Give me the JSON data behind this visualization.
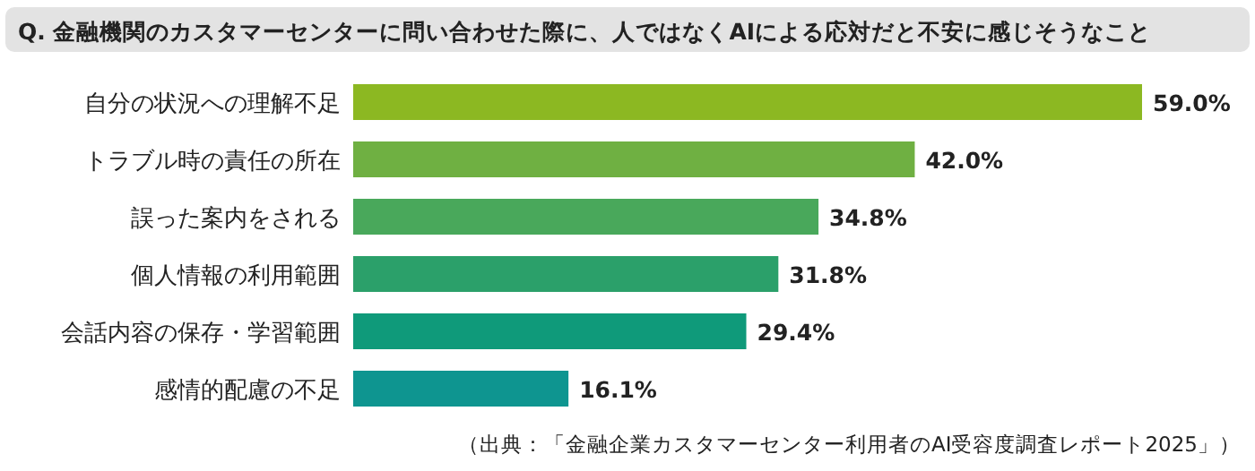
{
  "chart_data": {
    "type": "bar",
    "orientation": "horizontal",
    "title": "Q. 金融機関のカスタマーセンターに問い合わせた際に、人ではなくAIによる応対だと不安に感じそうなこと",
    "categories": [
      "自分の状況への理解不足",
      "トラブル時の責任の所在",
      "誤った案内をされる",
      "個人情報の利用範囲",
      "会話内容の保存・学習範囲",
      "感情的配慮の不足"
    ],
    "values": [
      59.0,
      42.0,
      34.8,
      31.8,
      29.4,
      16.1
    ],
    "value_labels": [
      "59.0%",
      "42.0%",
      "34.8%",
      "31.8%",
      "29.4%",
      "16.1%"
    ],
    "colors": [
      "#8cb822",
      "#6fb042",
      "#49a85b",
      "#2ba06a",
      "#0f9a7a",
      "#0e9590"
    ],
    "annotations": [
      "（出典：「金融企業カスタマーセンター利用者のAI受容度調査レポート2025」）"
    ]
  }
}
